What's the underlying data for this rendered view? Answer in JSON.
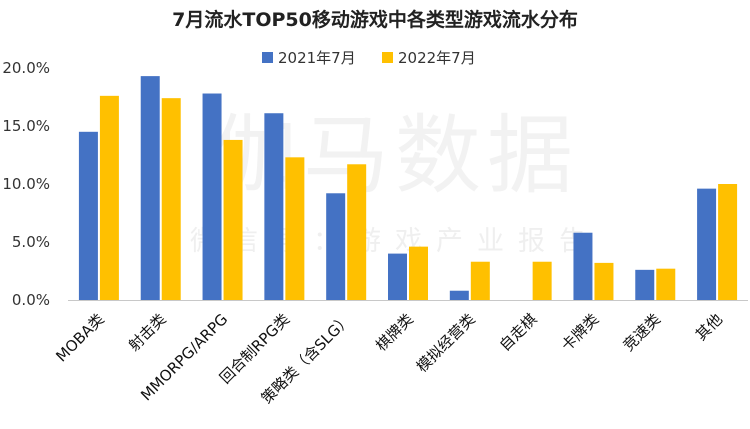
{
  "chart_data": {
    "type": "bar",
    "title": "7月流水TOP50移动游戏中各类型游戏流水分布",
    "categories": [
      "MOBA类",
      "射击类",
      "MMORPG/ARPG",
      "回合制RPG类",
      "策略类（含SLG）",
      "棋牌类",
      "模拟经营类",
      "自走棋",
      "卡牌类",
      "竞速类",
      "其他"
    ],
    "series": [
      {
        "name": "2021年7月",
        "color": "#4472C4",
        "values": [
          14.5,
          19.3,
          17.8,
          16.1,
          9.2,
          4.0,
          0.8,
          0.0,
          5.8,
          2.6,
          9.6
        ]
      },
      {
        "name": "2022年7月",
        "color": "#FFC000",
        "values": [
          17.6,
          17.4,
          13.8,
          12.3,
          11.7,
          4.6,
          3.3,
          3.3,
          3.2,
          2.7,
          10.0
        ]
      }
    ],
    "ylim": [
      0,
      20
    ],
    "yticks": [
      "0.0%",
      "5.0%",
      "10.0%",
      "15.0%",
      "20.0%"
    ],
    "ytick_values": [
      0,
      5,
      10,
      15,
      20
    ],
    "legend_position": "top-center",
    "watermark": "伽马数据",
    "watermark_sub": "微信号：游戏产业报告"
  }
}
